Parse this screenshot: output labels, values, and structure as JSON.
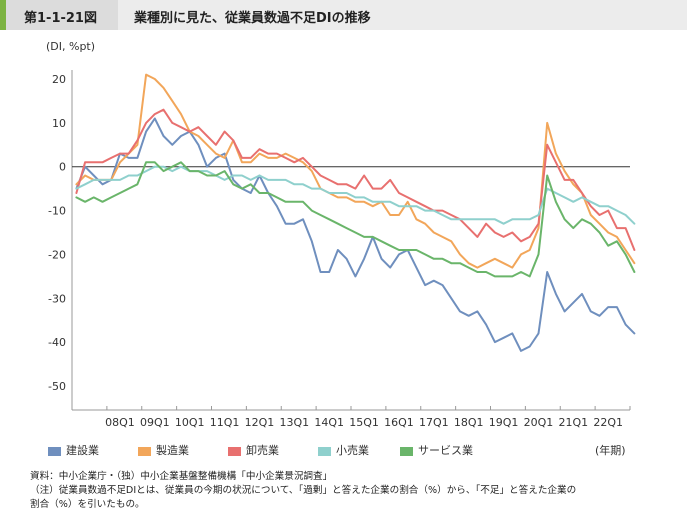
{
  "header": {
    "figure_number": "第1-1-21図",
    "title": "業種別に見た、従業員数過不足DIの推移"
  },
  "unit_label": "(DI, %pt)",
  "x_unit_label": "(年期)",
  "notes": [
    "資料：中小企業庁・（独）中小企業基盤整備機構「中小企業景況調査」",
    "（注）従業員数過不足DIとは、従業員の今期の状況について、「過剰」と答えた企業の割合（%）から、「不足」と答えた企業の",
    "割合（%）を引いたもの。"
  ],
  "colors": {
    "construction": "#6f8fbe",
    "manufacturing": "#f2a65a",
    "wholesale": "#e8706f",
    "retail": "#8fd0cd",
    "services": "#6ab56a"
  },
  "chart_data": {
    "type": "line",
    "ylim": [
      -50,
      20
    ],
    "yticks": [
      20,
      10,
      0,
      -10,
      -20,
      -30,
      -40,
      -50
    ],
    "xtick_labels": [
      "08Q1",
      "09Q1",
      "10Q1",
      "11Q1",
      "12Q1",
      "13Q1",
      "14Q1",
      "15Q1",
      "16Q1",
      "17Q1",
      "18Q1",
      "19Q1",
      "20Q1",
      "21Q1",
      "22Q1"
    ],
    "x_start": "2007Q1",
    "x_end": "2022Q4",
    "series": [
      {
        "name": "建設業",
        "key": "construction",
        "values": [
          -5,
          0,
          -2,
          -4,
          -3,
          3,
          2,
          2,
          8,
          11,
          7,
          5,
          7,
          8,
          5,
          0,
          2,
          3,
          -3,
          -5,
          -6,
          -2,
          -6,
          -9,
          -13,
          -13,
          -12,
          -17,
          -24,
          -24,
          -19,
          -21,
          -25,
          -21,
          -16,
          -21,
          -23,
          -20,
          -19,
          -23,
          -27,
          -26,
          -27,
          -30,
          -33,
          -34,
          -33,
          -36,
          -40,
          -39,
          -38,
          -42,
          -41,
          -38,
          -24,
          -29,
          -33,
          -31,
          -29,
          -33,
          -34,
          -32,
          -32,
          -36,
          -38
        ]
      },
      {
        "name": "製造業",
        "key": "manufacturing",
        "values": [
          -4,
          -2,
          -3,
          -3,
          -3,
          1,
          3,
          5,
          21,
          20,
          18,
          15,
          12,
          8,
          7,
          5,
          3,
          2,
          6,
          1,
          1,
          3,
          2,
          2,
          3,
          2,
          1,
          -1,
          -5,
          -6,
          -7,
          -7,
          -8,
          -8,
          -9,
          -8,
          -11,
          -11,
          -8,
          -12,
          -13,
          -15,
          -16,
          -17,
          -20,
          -22,
          -23,
          -22,
          -21,
          -22,
          -23,
          -20,
          -19,
          -14,
          10,
          3,
          -1,
          -4,
          -6,
          -11,
          -13,
          -15,
          -16,
          -19,
          -22
        ]
      },
      {
        "name": "卸売業",
        "key": "wholesale",
        "values": [
          -6,
          1,
          1,
          1,
          2,
          3,
          3,
          6,
          10,
          12,
          13,
          10,
          9,
          8,
          9,
          7,
          5,
          8,
          6,
          2,
          2,
          4,
          3,
          3,
          2,
          1,
          2,
          0,
          -2,
          -3,
          -4,
          -4,
          -5,
          -2,
          -5,
          -5,
          -3,
          -6,
          -7,
          -8,
          -9,
          -10,
          -10,
          -11,
          -12,
          -14,
          -16,
          -13,
          -15,
          -16,
          -15,
          -17,
          -16,
          -13,
          5,
          1,
          -3,
          -3,
          -6,
          -9,
          -11,
          -10,
          -14,
          -14,
          -19
        ]
      },
      {
        "name": "小売業",
        "key": "retail",
        "values": [
          -5,
          -4,
          -3,
          -3,
          -3,
          -3,
          -2,
          -2,
          -1,
          0,
          0,
          -1,
          0,
          -1,
          -1,
          -1,
          -2,
          -3,
          -2,
          -2,
          -3,
          -2,
          -3,
          -3,
          -3,
          -4,
          -4,
          -5,
          -5,
          -6,
          -6,
          -6,
          -7,
          -7,
          -8,
          -8,
          -8,
          -9,
          -9,
          -9,
          -10,
          -10,
          -11,
          -12,
          -12,
          -12,
          -12,
          -12,
          -12,
          -13,
          -12,
          -12,
          -12,
          -11,
          -5,
          -6,
          -7,
          -8,
          -7,
          -8,
          -9,
          -9,
          -10,
          -11,
          -13
        ]
      },
      {
        "name": "サービス業",
        "key": "services",
        "values": [
          -7,
          -8,
          -7,
          -8,
          -7,
          -6,
          -5,
          -4,
          1,
          1,
          -1,
          0,
          1,
          -1,
          -1,
          -2,
          -2,
          -1,
          -4,
          -5,
          -4,
          -6,
          -6,
          -7,
          -8,
          -8,
          -8,
          -10,
          -11,
          -12,
          -13,
          -14,
          -15,
          -16,
          -16,
          -17,
          -18,
          -19,
          -19,
          -19,
          -20,
          -21,
          -21,
          -22,
          -22,
          -23,
          -24,
          -24,
          -25,
          -25,
          -25,
          -24,
          -25,
          -20,
          -2,
          -8,
          -12,
          -14,
          -12,
          -13,
          -15,
          -18,
          -17,
          -20,
          -24
        ]
      }
    ]
  }
}
